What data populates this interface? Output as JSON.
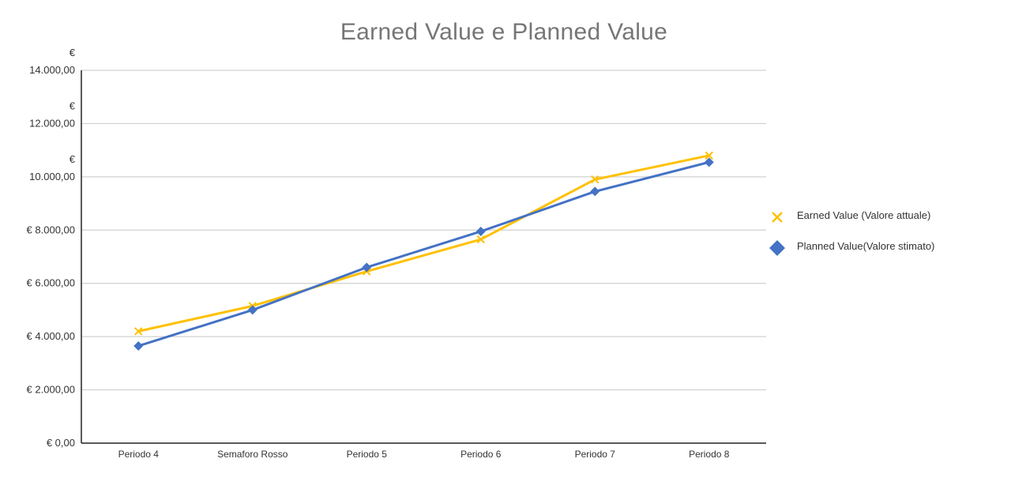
{
  "chart_data": {
    "type": "line",
    "title": "Earned Value e Planned Value",
    "xlabel": "",
    "ylabel": "",
    "categories": [
      "Periodo 4",
      "Semaforo Rosso",
      "Periodo 5",
      "Periodo 6",
      "Periodo 7",
      "Periodo 8"
    ],
    "ylim": [
      0,
      14000
    ],
    "y_ticks": [
      {
        "value": 0,
        "lines": [
          "€ 0,00"
        ]
      },
      {
        "value": 2000,
        "lines": [
          "€ 2.000,00"
        ]
      },
      {
        "value": 4000,
        "lines": [
          "€ 4.000,00"
        ]
      },
      {
        "value": 6000,
        "lines": [
          "€ 6.000,00"
        ]
      },
      {
        "value": 8000,
        "lines": [
          "€ 8.000,00"
        ]
      },
      {
        "value": 10000,
        "lines": [
          "€",
          "10.000,00"
        ]
      },
      {
        "value": 12000,
        "lines": [
          "€",
          "12.000,00"
        ]
      },
      {
        "value": 14000,
        "lines": [
          "€",
          "14.000,00"
        ]
      }
    ],
    "grid": true,
    "legend_position": "right",
    "series": [
      {
        "name": "Earned Value (Valore attuale)",
        "values": [
          4200,
          5150,
          6450,
          7650,
          9900,
          10800
        ],
        "color": "#FFC000",
        "marker": "x"
      },
      {
        "name": "Planned Value(Valore stimato)",
        "values": [
          3650,
          5000,
          6600,
          7950,
          9450,
          10550
        ],
        "color": "#4472C4",
        "marker": "diamond"
      }
    ]
  }
}
